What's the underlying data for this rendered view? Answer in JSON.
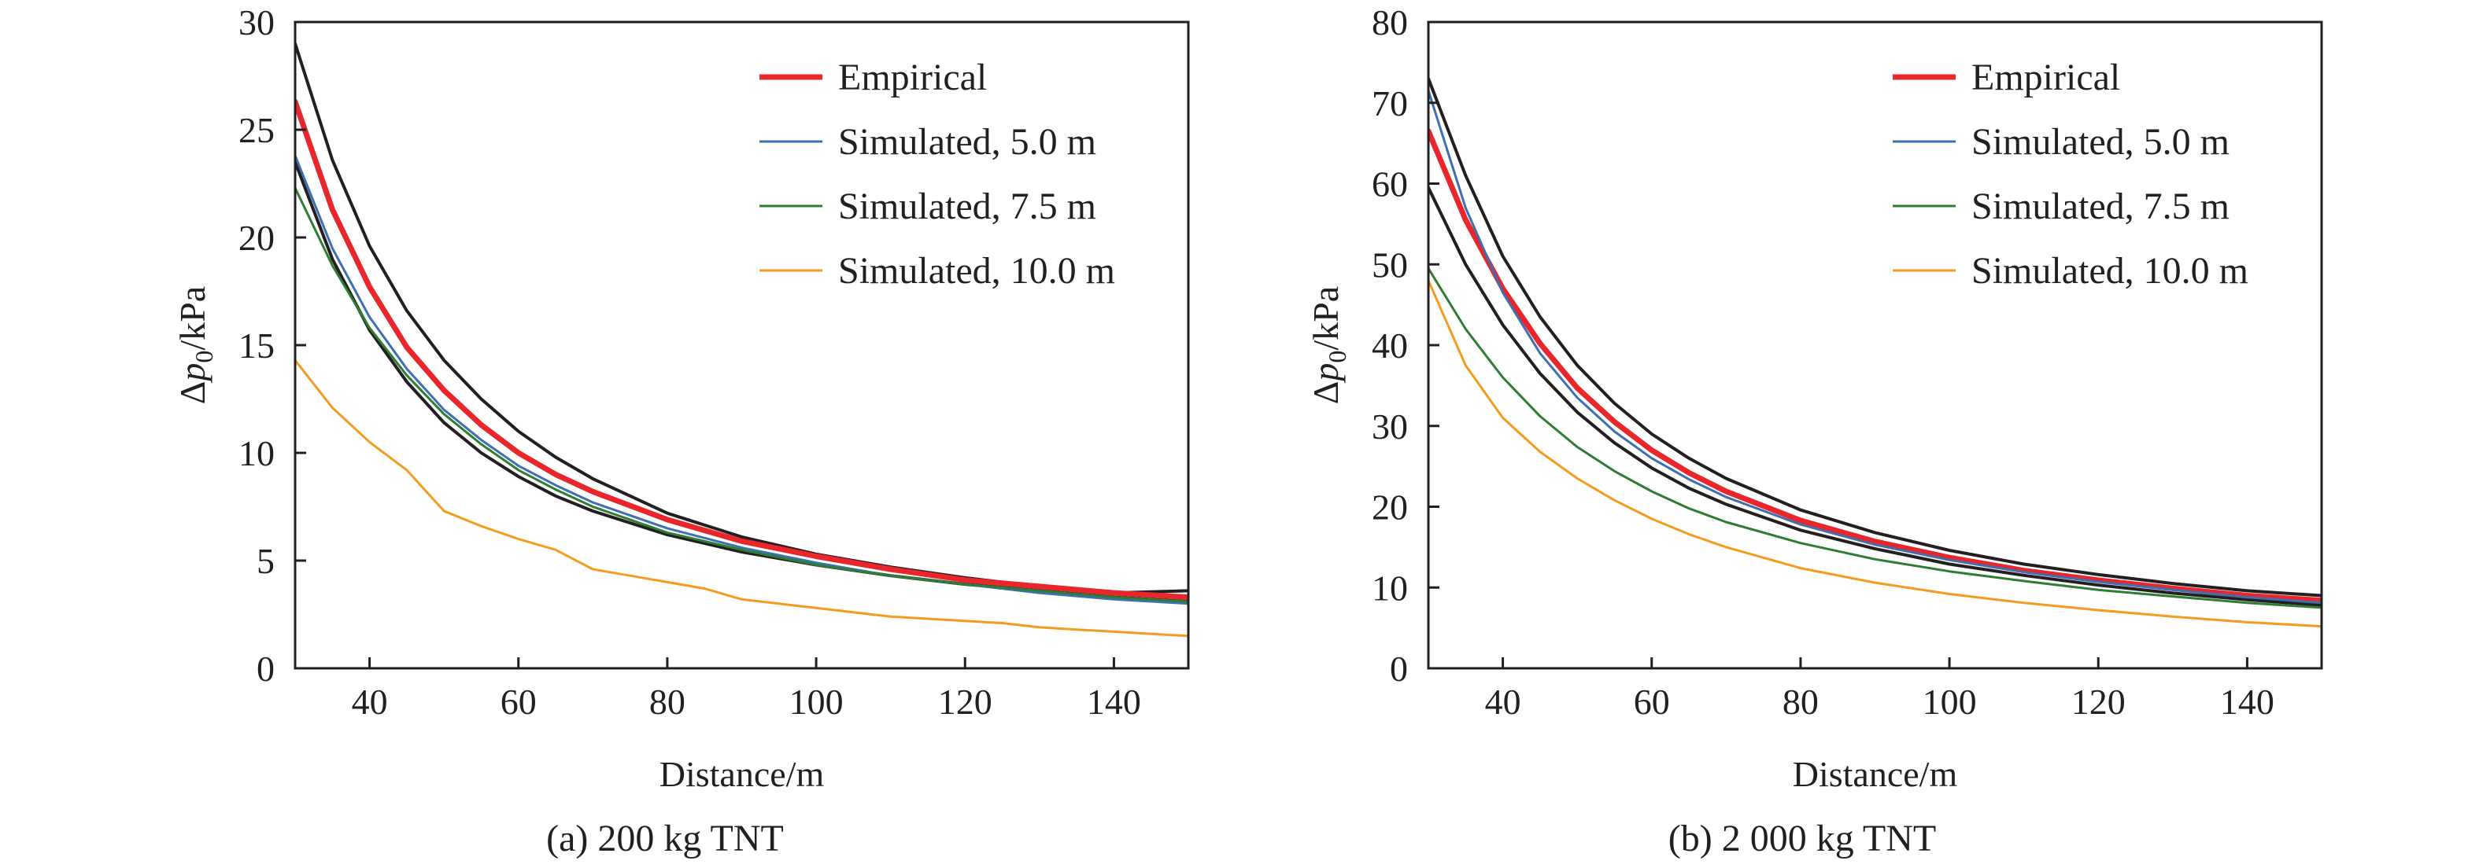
{
  "chart_data": [
    {
      "type": "line",
      "caption": "(a) 200 kg TNT",
      "xlabel": "Distance/m",
      "ylabel_prefix": "Δ",
      "ylabel_var": "p",
      "ylabel_sub": "0",
      "ylabel_unit": "/kPa",
      "xlim": [
        30,
        150
      ],
      "ylim": [
        0,
        30
      ],
      "xticks": [
        40,
        60,
        80,
        100,
        120,
        140
      ],
      "yticks": [
        0,
        5,
        10,
        15,
        20,
        25,
        30
      ],
      "grid": false,
      "legend_position": "top-right",
      "series": [
        {
          "name": "",
          "legend": false,
          "color": "#231f20",
          "width": 4,
          "x": [
            30,
            35,
            40,
            45,
            50,
            55,
            60,
            65,
            70,
            80,
            90,
            100,
            110,
            120,
            130,
            140,
            150
          ],
          "y": [
            29.0,
            23.6,
            19.6,
            16.6,
            14.3,
            12.5,
            11.0,
            9.8,
            8.8,
            7.2,
            6.1,
            5.3,
            4.7,
            4.2,
            3.8,
            3.5,
            3.6
          ]
        },
        {
          "name": "",
          "legend": false,
          "color": "#231f20",
          "width": 4,
          "x": [
            30,
            35,
            40,
            45,
            50,
            55,
            60,
            65,
            70,
            80,
            90,
            100,
            110,
            120,
            130,
            140,
            150
          ],
          "y": [
            23.5,
            19.0,
            15.7,
            13.3,
            11.4,
            10.0,
            8.9,
            8.0,
            7.3,
            6.2,
            5.4,
            4.8,
            4.3,
            3.9,
            3.6,
            3.3,
            3.1
          ]
        },
        {
          "name": "Empirical",
          "legend": true,
          "color": "#e8262c",
          "width": 7,
          "x": [
            30,
            35,
            40,
            45,
            50,
            55,
            60,
            65,
            70,
            80,
            90,
            100,
            110,
            120,
            130,
            140,
            150
          ],
          "y": [
            26.3,
            21.3,
            17.7,
            14.9,
            12.9,
            11.3,
            10.0,
            9.0,
            8.2,
            6.9,
            5.9,
            5.2,
            4.6,
            4.1,
            3.8,
            3.5,
            3.3
          ]
        },
        {
          "name": "Simulated, 5.0 m",
          "legend": true,
          "color": "#3e6fb0",
          "width": 3,
          "x": [
            30,
            35,
            40,
            45,
            50,
            55,
            60,
            65,
            70,
            80,
            90,
            100,
            110,
            120,
            130,
            140,
            150
          ],
          "y": [
            23.8,
            19.5,
            16.3,
            13.9,
            12.0,
            10.6,
            9.4,
            8.5,
            7.7,
            6.5,
            5.6,
            4.9,
            4.3,
            3.9,
            3.5,
            3.2,
            3.0
          ]
        },
        {
          "name": "Simulated, 7.5 m",
          "legend": true,
          "color": "#2e7d32",
          "width": 3,
          "x": [
            30,
            35,
            40,
            45,
            50,
            55,
            60,
            65,
            70,
            80,
            90,
            100,
            110,
            120,
            130,
            140,
            150
          ],
          "y": [
            22.3,
            18.7,
            15.8,
            13.6,
            11.8,
            10.4,
            9.2,
            8.3,
            7.5,
            6.3,
            5.5,
            4.8,
            4.3,
            3.9,
            3.6,
            3.3,
            3.1
          ]
        },
        {
          "name": "Simulated, 10.0 m",
          "legend": true,
          "color": "#f39c1f",
          "width": 3,
          "x": [
            30,
            35,
            40,
            45,
            50,
            55,
            60,
            65,
            70,
            75,
            80,
            85,
            90,
            95,
            100,
            105,
            110,
            115,
            120,
            125,
            130,
            135,
            140,
            145,
            150
          ],
          "y": [
            14.3,
            12.1,
            10.5,
            9.2,
            7.3,
            6.6,
            6.0,
            5.5,
            4.6,
            4.3,
            4.0,
            3.7,
            3.2,
            3.0,
            2.8,
            2.6,
            2.4,
            2.3,
            2.2,
            2.1,
            1.9,
            1.8,
            1.7,
            1.6,
            1.5
          ]
        }
      ]
    },
    {
      "type": "line",
      "caption": "(b) 2 000 kg TNT",
      "xlabel": "Distance/m",
      "ylabel_prefix": "Δ",
      "ylabel_var": "p",
      "ylabel_sub": "0",
      "ylabel_unit": "/kPa",
      "xlim": [
        30,
        150
      ],
      "ylim": [
        0,
        80
      ],
      "xticks": [
        40,
        60,
        80,
        100,
        120,
        140
      ],
      "yticks": [
        0,
        10,
        20,
        30,
        40,
        50,
        60,
        70,
        80
      ],
      "grid": false,
      "legend_position": "top-right",
      "series": [
        {
          "name": "",
          "legend": false,
          "color": "#231f20",
          "width": 4,
          "x": [
            30,
            35,
            40,
            45,
            50,
            55,
            60,
            65,
            70,
            80,
            90,
            100,
            110,
            120,
            130,
            140,
            150
          ],
          "y": [
            73.0,
            61.0,
            51.0,
            43.5,
            37.5,
            32.8,
            29.0,
            26.0,
            23.5,
            19.6,
            16.8,
            14.6,
            12.9,
            11.6,
            10.5,
            9.6,
            9.0
          ]
        },
        {
          "name": "",
          "legend": false,
          "color": "#231f20",
          "width": 4,
          "x": [
            30,
            35,
            40,
            45,
            50,
            55,
            60,
            65,
            70,
            80,
            90,
            100,
            110,
            120,
            130,
            140,
            150
          ],
          "y": [
            59.5,
            50.0,
            42.5,
            36.5,
            31.7,
            27.9,
            24.8,
            22.3,
            20.3,
            17.1,
            14.8,
            12.9,
            11.5,
            10.3,
            9.3,
            8.5,
            7.8
          ]
        },
        {
          "name": "Empirical",
          "legend": true,
          "color": "#e8262c",
          "width": 7,
          "x": [
            30,
            35,
            40,
            45,
            50,
            55,
            60,
            65,
            70,
            80,
            90,
            100,
            110,
            120,
            130,
            140,
            150
          ],
          "y": [
            66.5,
            55.5,
            47.0,
            40.2,
            34.7,
            30.5,
            27.0,
            24.2,
            21.9,
            18.3,
            15.7,
            13.7,
            12.1,
            10.9,
            9.9,
            9.0,
            8.4
          ]
        },
        {
          "name": "Simulated, 5.0 m",
          "legend": true,
          "color": "#3e6fb0",
          "width": 3,
          "x": [
            30,
            35,
            40,
            45,
            50,
            55,
            60,
            65,
            70,
            80,
            90,
            100,
            110,
            120,
            130,
            140,
            150
          ],
          "y": [
            71.5,
            57.0,
            46.5,
            39.0,
            33.5,
            29.3,
            26.0,
            23.4,
            21.2,
            17.8,
            15.3,
            13.4,
            11.9,
            10.7,
            9.7,
            8.8,
            8.1
          ]
        },
        {
          "name": "Simulated, 7.5 m",
          "legend": true,
          "color": "#2e7d32",
          "width": 3,
          "x": [
            30,
            35,
            40,
            45,
            50,
            55,
            60,
            65,
            70,
            80,
            90,
            100,
            110,
            120,
            130,
            140,
            150
          ],
          "y": [
            49.5,
            42.0,
            36.0,
            31.2,
            27.4,
            24.4,
            21.9,
            19.8,
            18.1,
            15.5,
            13.5,
            12.0,
            10.8,
            9.7,
            8.9,
            8.1,
            7.5
          ]
        },
        {
          "name": "Simulated, 10.0 m",
          "legend": true,
          "color": "#f39c1f",
          "width": 3,
          "x": [
            30,
            35,
            40,
            45,
            50,
            55,
            60,
            65,
            70,
            80,
            90,
            100,
            110,
            120,
            130,
            140,
            150
          ],
          "y": [
            48.0,
            37.5,
            31.0,
            26.8,
            23.5,
            20.8,
            18.5,
            16.6,
            15.0,
            12.4,
            10.6,
            9.2,
            8.1,
            7.2,
            6.4,
            5.7,
            5.2
          ]
        }
      ]
    }
  ]
}
